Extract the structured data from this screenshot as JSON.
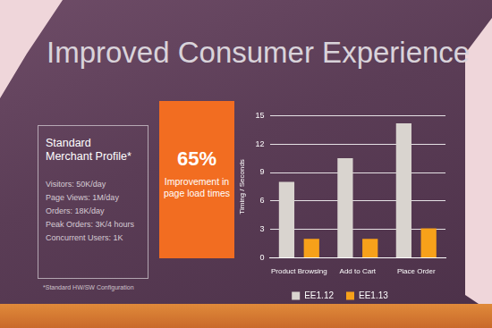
{
  "chart_data": {
    "type": "bar",
    "title": "Improved Consumer Experience",
    "y_label": "Timing / Seconds",
    "categories": [
      "Product Browsing",
      "Add to Cart",
      "Place Order"
    ],
    "series": [
      {
        "name": "EE1.12",
        "color": "#d9d4cf",
        "values": [
          8,
          10.5,
          14.2
        ]
      },
      {
        "name": "EE1.13",
        "color": "#f7a11a",
        "values": [
          2,
          2,
          3.1
        ]
      }
    ],
    "ylim": [
      0,
      15
    ],
    "yticks": [
      0,
      3,
      6,
      9,
      12,
      15
    ],
    "grid": true,
    "legend": "bottom"
  },
  "panel": {
    "profile": {
      "heading": "Standard Merchant Profile*",
      "items": [
        "Visitors: 50K/day",
        "Page Views: 1M/day",
        "Orders: 18K/day",
        "Peak Orders: 3K/4 hours",
        "Concurrent Users: 1K"
      ]
    },
    "highlight": {
      "value": "65%",
      "text": "Improvement in page load times"
    },
    "footnote": "*Standard HW/SW Configuration"
  }
}
